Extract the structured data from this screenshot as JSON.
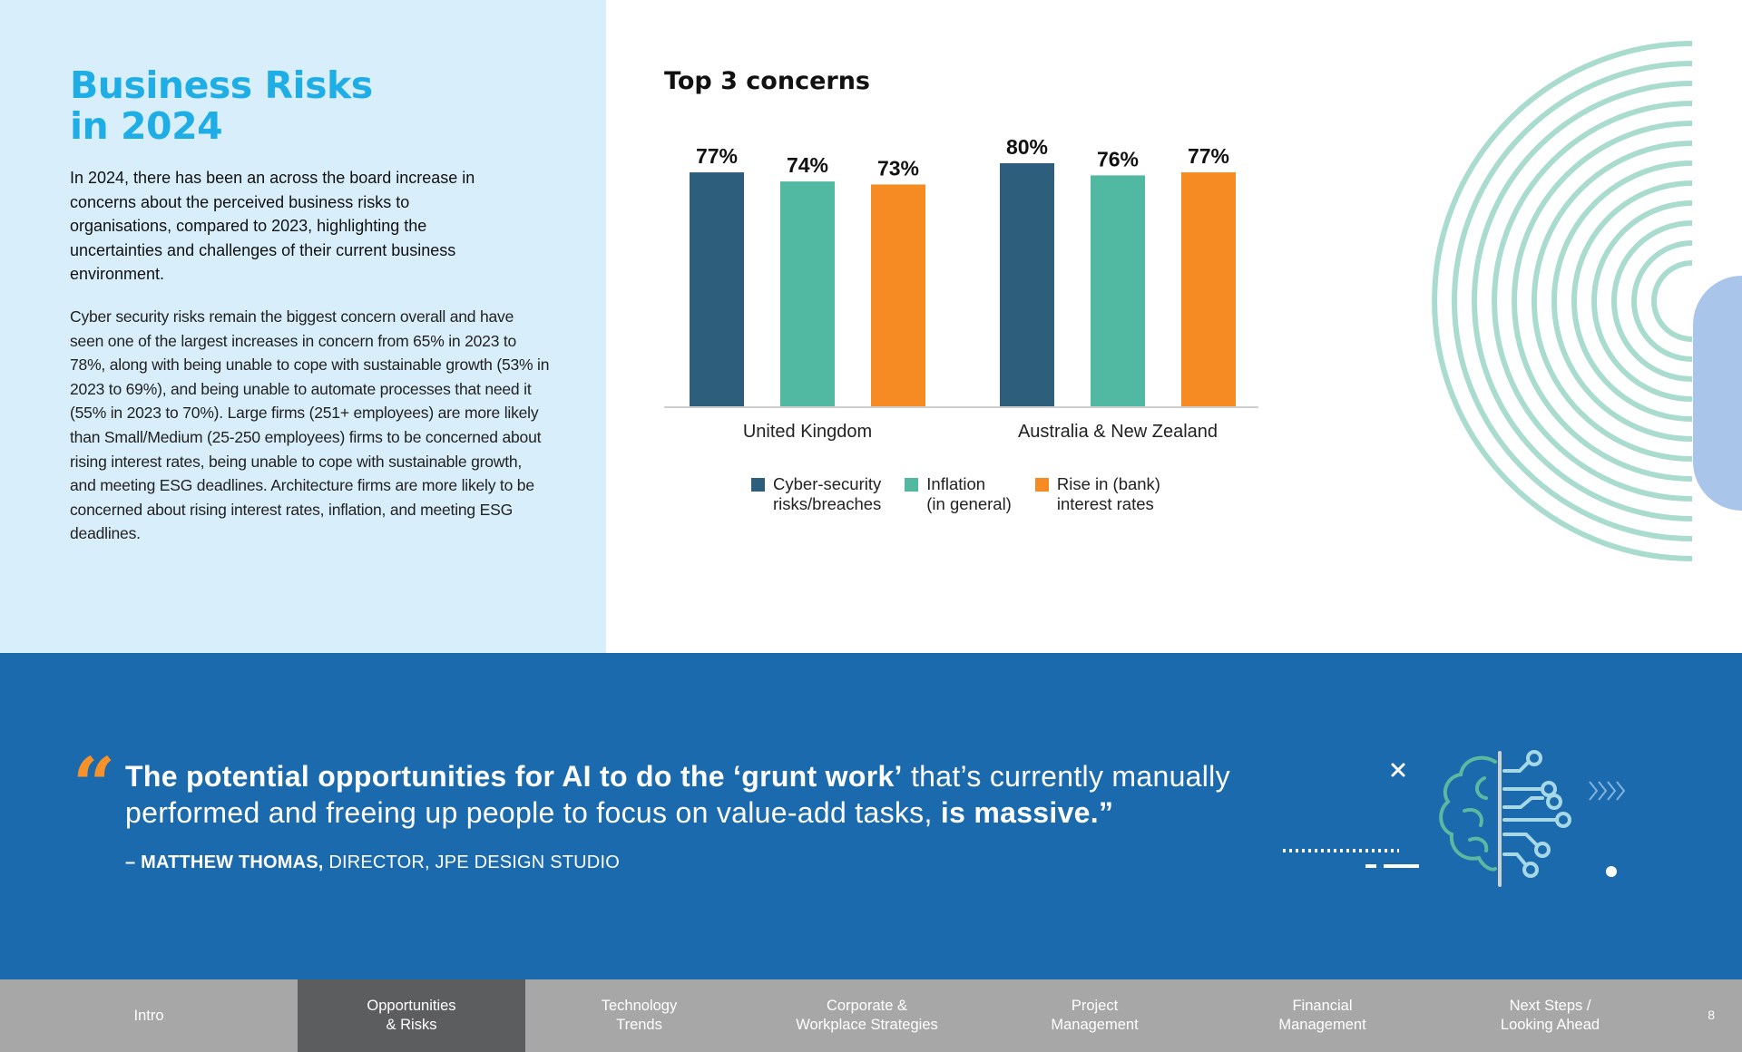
{
  "left": {
    "title_line1": "Business Risks",
    "title_line2": "in 2024",
    "intro_bold": "In 2024, there has been an across the board increase in concerns about the perceived business risks to organisations, compared to 2023, highlighting the uncertainties and challenges of their current business environment.",
    "body": "Cyber security risks remain the biggest concern overall and have seen one of the largest increases in concern from 65% in 2023 to 78%, along with being unable to cope with sustainable growth (53% in 2023 to 69%), and being unable to automate processes that need it (55% in 2023 to 70%).  Large firms (251+ employees) are more likely than Small/Medium (25-250 employees) firms to be concerned about rising interest rates, being unable to cope with sustainable growth, and meeting ESG deadlines. Architecture firms are more likely to be concerned about rising interest rates, inflation, and meeting ESG deadlines."
  },
  "chart_data": {
    "type": "bar",
    "title": "Top 3 concerns",
    "categories": [
      "United Kingdom",
      "Australia & New Zealand"
    ],
    "series": [
      {
        "name": "Cyber-security\nrisks/breaches",
        "color": "#2d5f7c",
        "values": [
          77,
          80
        ]
      },
      {
        "name": "Inflation\n(in general)",
        "color": "#51b8a1",
        "values": [
          74,
          76
        ]
      },
      {
        "name": "Rise in (bank)\ninterest rates",
        "color": "#f58b22",
        "values": [
          73,
          77
        ]
      }
    ],
    "data_labels": [
      [
        "77%",
        "80%"
      ],
      [
        "74%",
        "76%"
      ],
      [
        "73%",
        "77%"
      ]
    ],
    "ylim": [
      0,
      100
    ],
    "grid": false,
    "legend_position": "bottom"
  },
  "quote": {
    "mark": "“",
    "bold_part": "The potential opportunities for AI to do the ‘grunt work’",
    "regular_part": " that’s currently manually performed and freeing up people to focus on value-add tasks, ",
    "bold_end": "is massive.”",
    "attrib_name": "– MATTHEW THOMAS,",
    "attrib_role": " DIRECTOR, JPE DESIGN STUDIO"
  },
  "icons": {
    "close": "close-icon",
    "brain": "brain-circuit-icon",
    "chevrons": "chevrons-right-icon"
  },
  "colors": {
    "title": "#1eaee5",
    "quote_band": "#1b6aad",
    "accent_orange": "#f7922a",
    "nav_bg": "#a7a7a7",
    "nav_active": "#5c5d5f",
    "arc_teal": "#a9dcce"
  },
  "nav": {
    "tabs": [
      "Intro",
      "Opportunities\n& Risks",
      "Technology\nTrends",
      "Corporate &\nWorkplace Strategies",
      "Project\nManagement",
      "Financial\nManagement",
      "Next Steps /\nLooking Ahead"
    ],
    "active_index": 1,
    "page_number": "8"
  }
}
